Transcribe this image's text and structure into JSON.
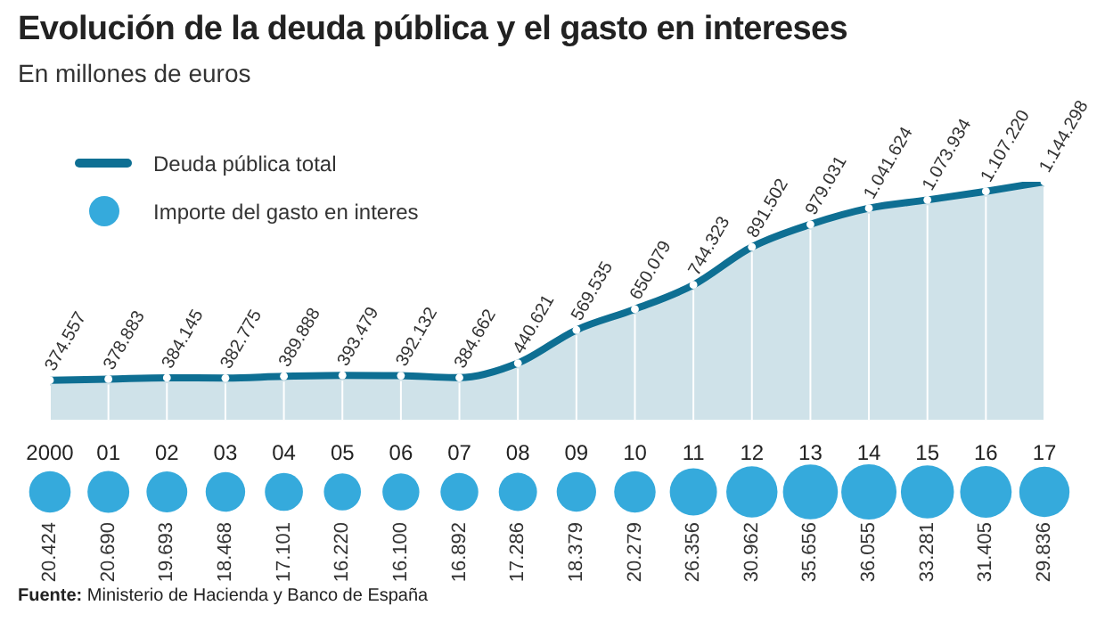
{
  "chart_data": [
    {
      "type": "area",
      "title": "Evolución de la deuda pública y el gasto en intereses",
      "subtitle": "En millones de euros",
      "annotations": [
        "Fuente: Ministerio de Hacienda y Banco de España"
      ],
      "categories": [
        "2000",
        "01",
        "02",
        "03",
        "04",
        "05",
        "06",
        "07",
        "08",
        "09",
        "10",
        "11",
        "12",
        "13",
        "14",
        "15",
        "16",
        "17"
      ],
      "series": [
        {
          "name": "Deuda pública total",
          "color": "#0e6f93",
          "values": [
            374557,
            378883,
            384145,
            382775,
            389888,
            393479,
            392132,
            384662,
            440621,
            569535,
            650079,
            744323,
            891502,
            979031,
            1041624,
            1073934,
            1107220,
            1144298
          ],
          "value_labels": [
            "374.557",
            "378.883",
            "384.145",
            "382.775",
            "389.888",
            "393.479",
            "392.132",
            "384.662",
            "440.621",
            "569.535",
            "650.079",
            "744.323",
            "891.502",
            "979.031",
            "1.041.624",
            "1.073.934",
            "1.107.220",
            "1.144.298"
          ]
        }
      ],
      "marker": "circle",
      "grid": "x",
      "legend": "top left"
    },
    {
      "type": "other",
      "series": [
        {
          "name": "Importe del gasto en interes",
          "color": "#35aadc",
          "values": [
            20424,
            20690,
            19693,
            18468,
            17101,
            16220,
            16100,
            16892,
            17286,
            18379,
            20279,
            26356,
            30962,
            35656,
            36055,
            33281,
            31405,
            29836
          ],
          "value_labels": [
            "20.424",
            "20.690",
            "19.693",
            "18.468",
            "17.101",
            "16.220",
            "16.100",
            "16.892",
            "17.286",
            "18.379",
            "20.279",
            "26.356",
            "30.962",
            "35.656",
            "36.055",
            "33.281",
            "31.405",
            "29.836"
          ]
        }
      ],
      "legend": "top left"
    }
  ]
}
